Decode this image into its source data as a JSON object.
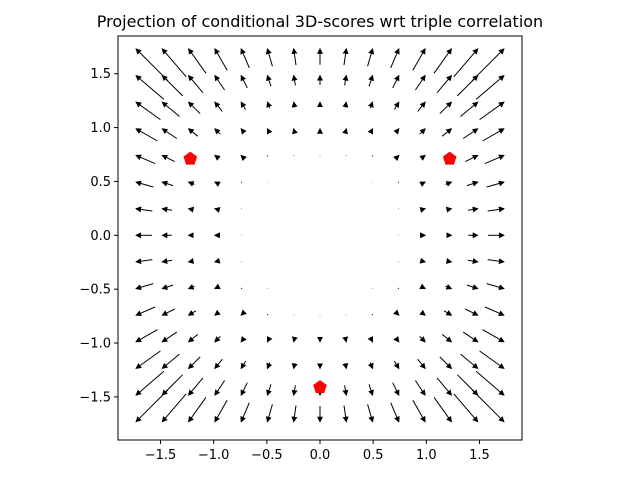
{
  "chart_data": {
    "type": "quiver",
    "title": "Projection of conditional 3D-scores wrt triple correlation",
    "xlabel": "",
    "ylabel": "",
    "xlim": [
      -1.9,
      1.9
    ],
    "ylim": [
      -1.9,
      1.85
    ],
    "aspect": "equal",
    "grid": false,
    "xticks": [
      -1.5,
      -1.0,
      -0.5,
      0.0,
      0.5,
      1.0,
      1.5
    ],
    "xtick_labels": [
      "−1.5",
      "−1.0",
      "−0.5",
      "0.0",
      "0.5",
      "1.0",
      "1.5"
    ],
    "yticks": [
      -1.5,
      -1.0,
      -0.5,
      0.0,
      0.5,
      1.0,
      1.5
    ],
    "ytick_labels": [
      "−1.5",
      "−1.0",
      "−0.5",
      "0.0",
      "0.5",
      "1.0",
      "1.5"
    ],
    "vector_field": {
      "grid_min": -1.73,
      "grid_max": 1.73,
      "grid_n": 15,
      "arrow_color": "#000000",
      "description_of_field": "arrows point radially outward; magnitude grows with distance from origin, strongest at corners"
    },
    "points": {
      "color": "#ff0000",
      "marker": "pentagon",
      "x": [
        -1.22,
        1.22,
        0.0
      ],
      "y": [
        0.71,
        0.71,
        -1.41
      ]
    }
  }
}
